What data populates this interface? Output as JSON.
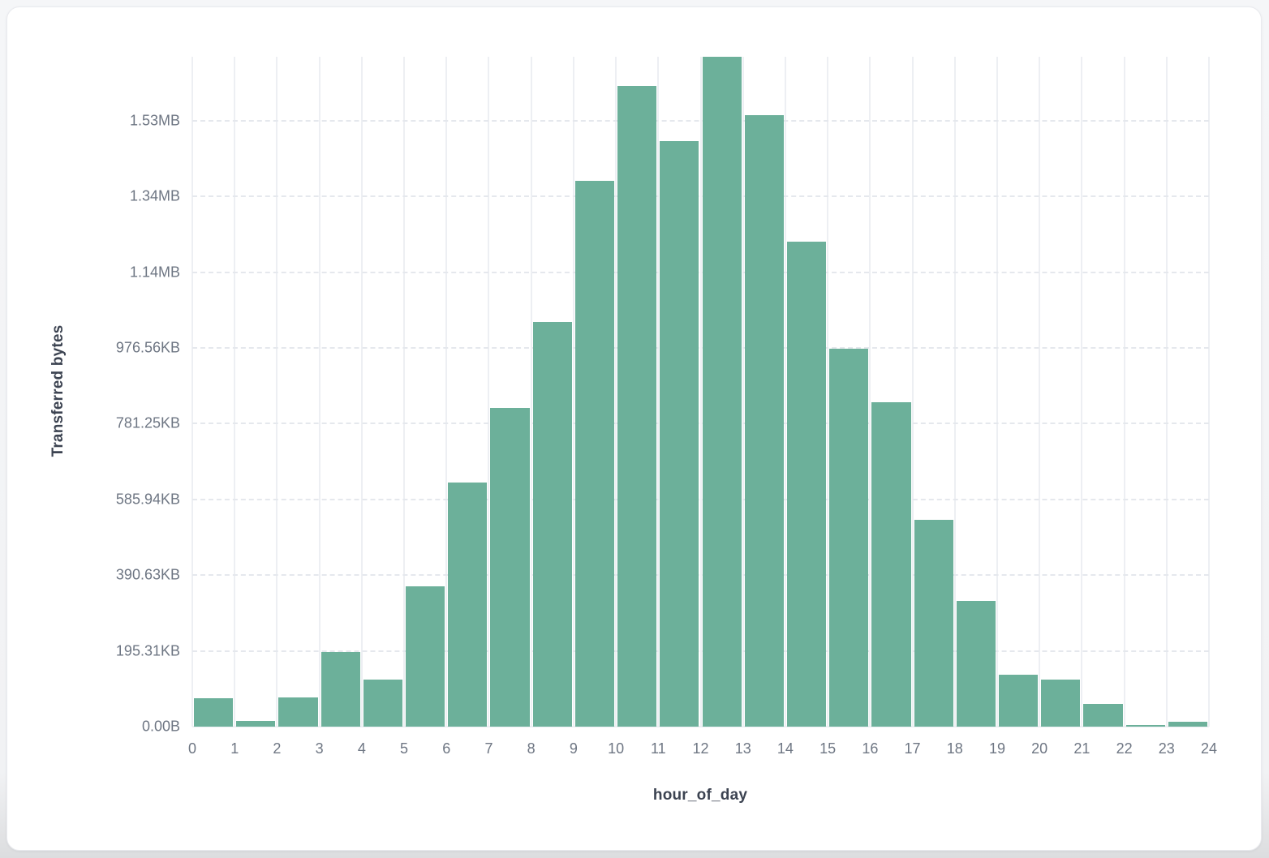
{
  "page": {
    "background_color": "#f3f4f6",
    "card_background": "#ffffff"
  },
  "chart_data": {
    "type": "bar",
    "title": "",
    "xlabel": "hour_of_day",
    "ylabel": "Transferred bytes",
    "bar_color": "#6CB09A",
    "grid": true,
    "legend": false,
    "x_ticks": [
      "0",
      "1",
      "2",
      "3",
      "4",
      "5",
      "6",
      "7",
      "8",
      "9",
      "10",
      "11",
      "12",
      "13",
      "14",
      "15",
      "16",
      "17",
      "18",
      "19",
      "20",
      "21",
      "22",
      "23",
      "24"
    ],
    "bin_starts": [
      0,
      1,
      2,
      3,
      4,
      5,
      6,
      7,
      8,
      9,
      10,
      11,
      12,
      13,
      14,
      15,
      16,
      17,
      18,
      19,
      20,
      21,
      22,
      23
    ],
    "values_bytes": [
      74000,
      15000,
      78000,
      198000,
      125000,
      370000,
      644000,
      841000,
      1068000,
      1441000,
      1692000,
      1546000,
      1769000,
      1614000,
      1280000,
      997000,
      856000,
      547000,
      333000,
      138000,
      125000,
      59000,
      4500,
      13500
    ],
    "y_ticks": [
      {
        "label": "0.00B",
        "value": 0
      },
      {
        "label": "195.31KB",
        "value": 200000
      },
      {
        "label": "390.63KB",
        "value": 400000
      },
      {
        "label": "585.94KB",
        "value": 600000
      },
      {
        "label": "781.25KB",
        "value": 800000
      },
      {
        "label": "976.56KB",
        "value": 1000000
      },
      {
        "label": "1.14MB",
        "value": 1200000
      },
      {
        "label": "1.34MB",
        "value": 1400000
      },
      {
        "label": "1.53MB",
        "value": 1600000
      }
    ],
    "ylim": [
      0,
      1769000
    ],
    "xlim": [
      0,
      24
    ]
  }
}
